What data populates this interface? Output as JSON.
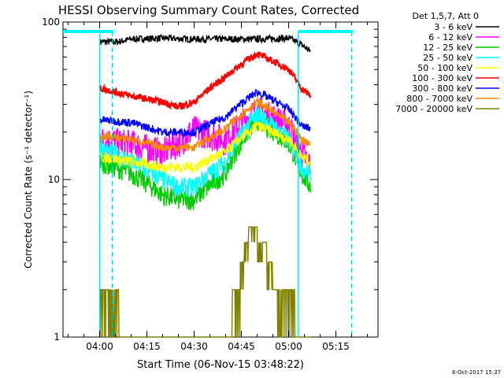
{
  "chart_data": {
    "type": "line",
    "title": "HESSI Observing Summary Count Rates, Corrected",
    "xlabel": "Start Time (06-Nov-15 03:48:22)",
    "ylabel": "Corrected Count Rate (s⁻¹ detector⁻¹)",
    "yscale": "log",
    "ylim": [
      1,
      100
    ],
    "xlim": [
      "03:48:22",
      "05:28:22"
    ],
    "x_tick_labels": [
      "04:00",
      "04:15",
      "04:30",
      "04:45",
      "05:00",
      "05:15"
    ],
    "y_tick_labels": [
      "1",
      "10",
      "100"
    ],
    "legend_title": "Det 1,5,7, Att 0",
    "legend_position": "outside-right",
    "timestamp": "6-Oct-2017 15:37",
    "grid": false,
    "data_span": [
      "04:00",
      "05:07"
    ],
    "vlines_solid": [
      "04:00",
      "05:03"
    ],
    "vlines_dashed": [
      "04:04",
      "05:20"
    ],
    "series": [
      {
        "name": "3 - 6 keV",
        "color": "#000000",
        "times": [
          "04:00",
          "04:06",
          "04:10",
          "04:20",
          "04:30",
          "04:40",
          "04:50",
          "05:00",
          "05:04",
          "05:07"
        ],
        "values": [
          75,
          75,
          78,
          79,
          78,
          78,
          78,
          79,
          72,
          65
        ],
        "noise": 0.05
      },
      {
        "name": "6 - 12 keV",
        "color": "#ff00ff",
        "times": [
          "04:00",
          "04:10",
          "04:20",
          "04:26",
          "04:30",
          "04:40",
          "04:50",
          "05:00",
          "05:04",
          "05:07"
        ],
        "values": [
          18,
          17,
          15,
          18,
          21,
          18,
          28,
          22,
          15,
          12
        ],
        "noise": 0.22
      },
      {
        "name": "12 - 25 keV",
        "color": "#00cc00",
        "times": [
          "04:00",
          "04:10",
          "04:20",
          "04:25",
          "04:30",
          "04:40",
          "04:50",
          "05:00",
          "05:04",
          "05:07"
        ],
        "values": [
          13,
          11,
          8,
          7.5,
          7.5,
          11,
          24,
          17,
          11,
          9
        ],
        "noise": 0.15
      },
      {
        "name": "25 - 50 keV",
        "color": "#00ffff",
        "times": [
          "04:00",
          "04:10",
          "04:20",
          "04:25",
          "04:30",
          "04:40",
          "04:50",
          "05:00",
          "05:04",
          "05:07"
        ],
        "values": [
          16,
          13,
          10,
          9,
          9,
          13,
          26,
          18,
          12,
          11
        ],
        "noise": 0.14
      },
      {
        "name": "50 - 100 keV",
        "color": "#ffff00",
        "times": [
          "04:00",
          "04:10",
          "04:20",
          "04:30",
          "04:40",
          "04:50",
          "05:00",
          "05:04",
          "05:07"
        ],
        "values": [
          14,
          13,
          12,
          12,
          15,
          22,
          18,
          14,
          13
        ],
        "noise": 0.08
      },
      {
        "name": "100 - 300 keV",
        "color": "#ff0000",
        "times": [
          "04:00",
          "04:10",
          "04:20",
          "04:25",
          "04:30",
          "04:40",
          "04:50",
          "05:00",
          "05:04",
          "05:07"
        ],
        "values": [
          38,
          34,
          31,
          29,
          31,
          45,
          63,
          50,
          38,
          34
        ],
        "noise": 0.05
      },
      {
        "name": "300 - 800 keV",
        "color": "#0000ff",
        "times": [
          "04:00",
          "04:10",
          "04:20",
          "04:30",
          "04:40",
          "04:50",
          "05:00",
          "05:04",
          "05:07"
        ],
        "values": [
          24,
          23,
          20,
          20,
          25,
          36,
          28,
          22,
          21
        ],
        "noise": 0.06
      },
      {
        "name": "800 - 7000 keV",
        "color": "#ff8800",
        "times": [
          "04:00",
          "04:10",
          "04:20",
          "04:30",
          "04:40",
          "04:50",
          "05:00",
          "05:04",
          "05:07"
        ],
        "values": [
          19,
          18,
          16,
          16,
          21,
          31,
          23,
          18,
          17
        ],
        "noise": 0.06
      },
      {
        "name": "7000 - 20000 keV",
        "color": "#808000",
        "times": [
          "04:00",
          "04:04",
          "04:08",
          "04:12",
          "04:16",
          "04:40",
          "04:44",
          "04:48",
          "04:52",
          "04:56",
          "05:00",
          "05:04",
          "05:07"
        ],
        "values": [
          2,
          2,
          1,
          1,
          1,
          1,
          2,
          5,
          4,
          2,
          2,
          1,
          1
        ],
        "noise": 0.0
      }
    ]
  }
}
